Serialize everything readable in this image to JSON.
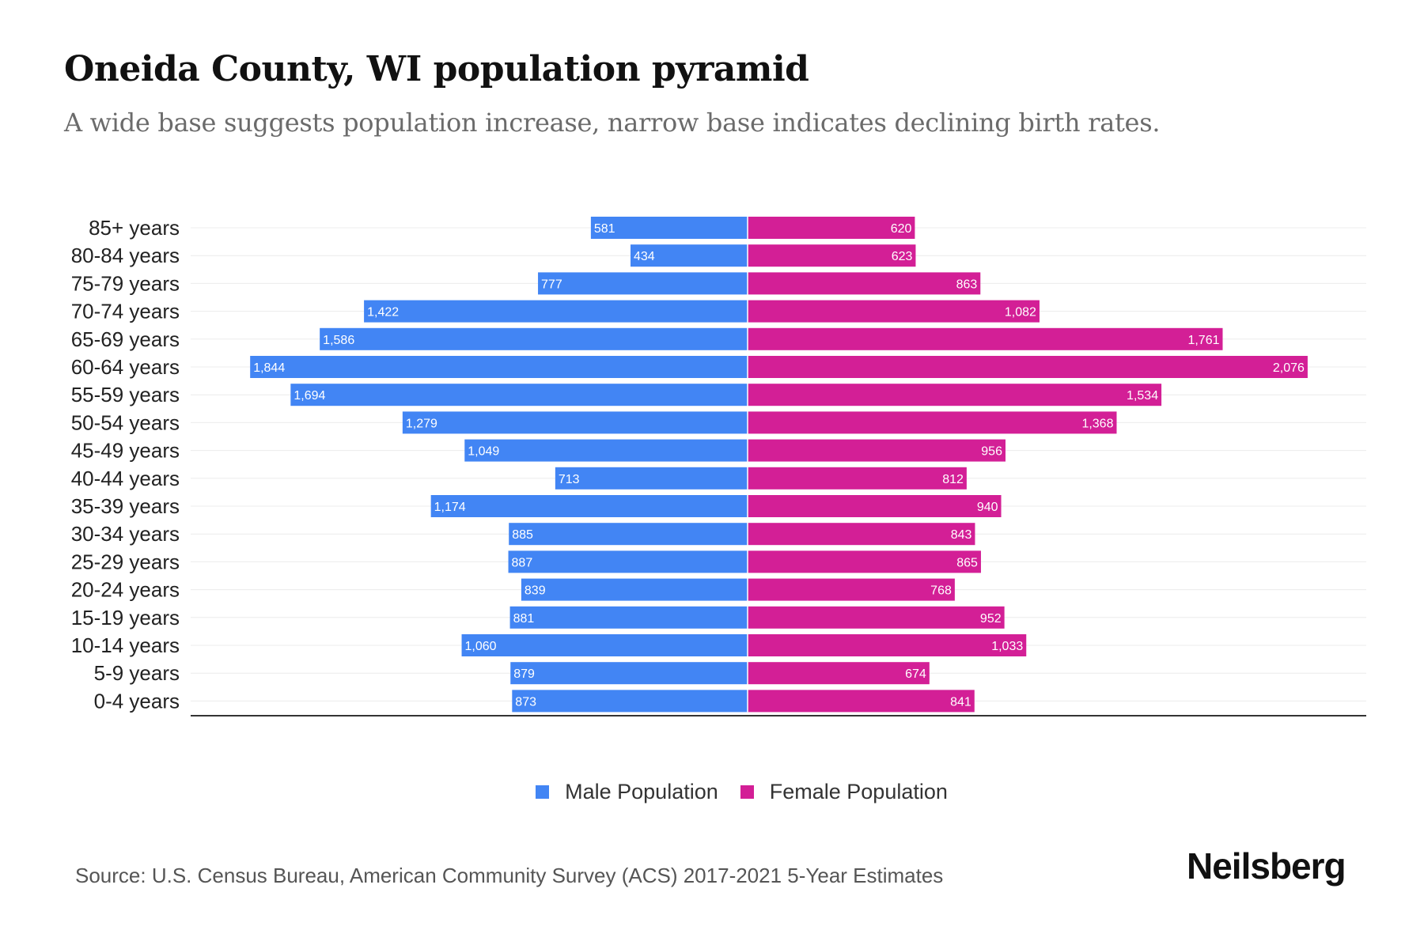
{
  "header": {
    "title": "Oneida County, WI population pyramid",
    "subtitle": "A wide base suggests population increase, narrow base indicates declining birth rates."
  },
  "chart_data": {
    "type": "bar",
    "orientation": "horizontal-pyramid",
    "categories": [
      "85+ years",
      "80-84 years",
      "75-79 years",
      "70-74 years",
      "65-69 years",
      "60-64 years",
      "55-59 years",
      "50-54 years",
      "45-49 years",
      "40-44 years",
      "35-39 years",
      "30-34 years",
      "25-29 years",
      "20-24 years",
      "15-19 years",
      "10-14 years",
      "5-9 years",
      "0-4 years"
    ],
    "series": [
      {
        "name": "Male Population",
        "color": "#4285f4",
        "side": "left",
        "values": [
          581,
          434,
          777,
          1422,
          1586,
          1844,
          1694,
          1279,
          1049,
          713,
          1174,
          885,
          887,
          839,
          881,
          1060,
          879,
          873
        ],
        "labels": [
          "581",
          "434",
          "777",
          "1,422",
          "1,586",
          "1,844",
          "1,694",
          "1,279",
          "1,049",
          "713",
          "1,174",
          "885",
          "887",
          "839",
          "881",
          "1,060",
          "879",
          "873"
        ]
      },
      {
        "name": "Female Population",
        "color": "#d31f96",
        "side": "right",
        "values": [
          620,
          623,
          863,
          1082,
          1761,
          2076,
          1534,
          1368,
          956,
          812,
          940,
          843,
          865,
          768,
          952,
          1033,
          674,
          841
        ],
        "labels": [
          "620",
          "623",
          "863",
          "1,082",
          "1,761",
          "2,076",
          "1,534",
          "1,368",
          "956",
          "812",
          "940",
          "843",
          "865",
          "768",
          "952",
          "1,033",
          "674",
          "841"
        ]
      }
    ],
    "xlim": [
      -2180,
      2180
    ],
    "grid": true,
    "legend_position": "bottom"
  },
  "footer": {
    "source": "Source: U.S. Census Bureau, American Community Survey (ACS) 2017-2021 5-Year Estimates",
    "logo": "Neilsberg"
  }
}
